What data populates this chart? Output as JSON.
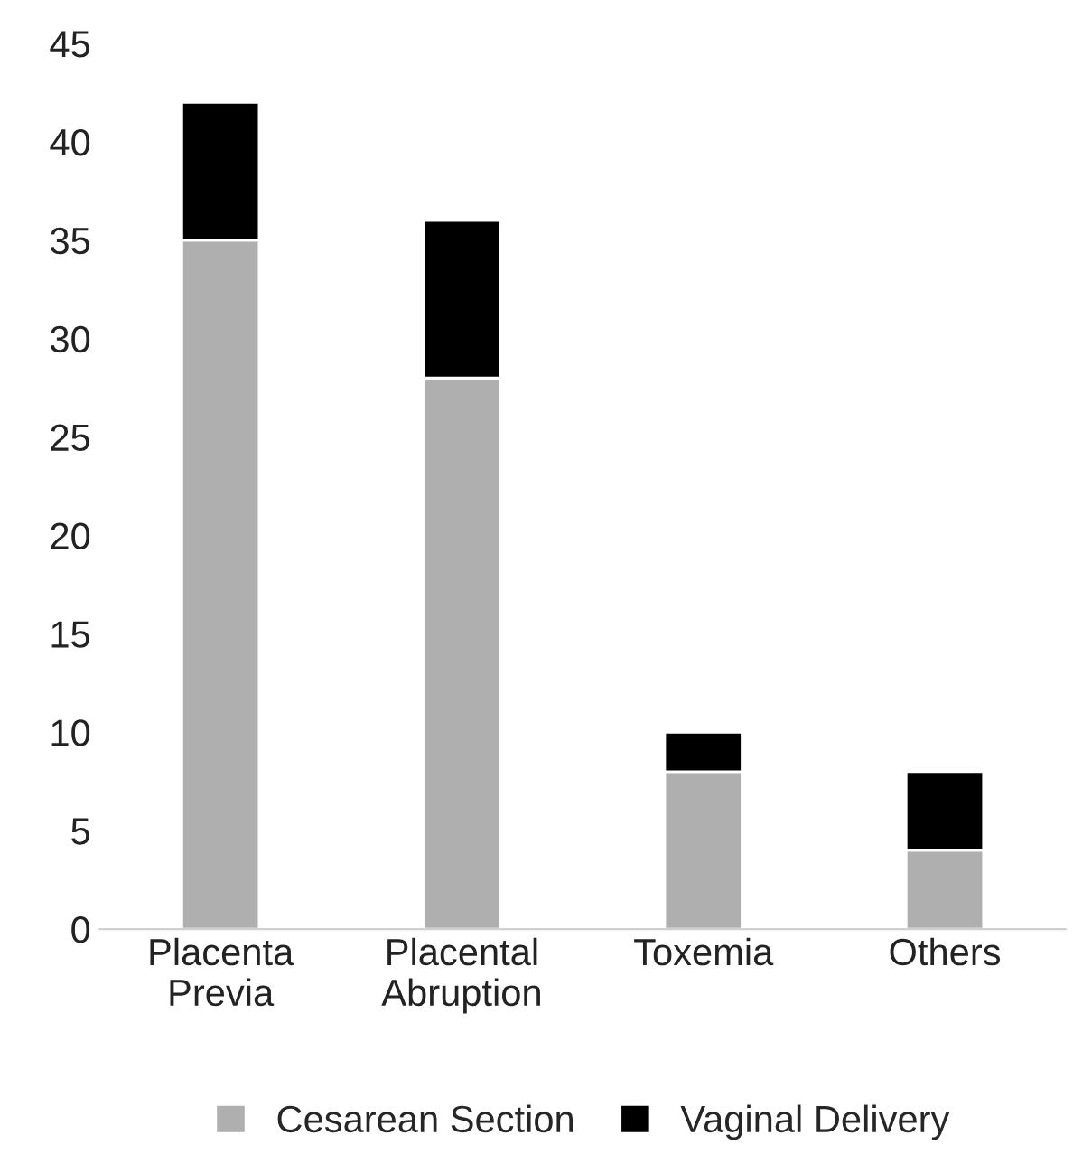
{
  "chart_data": {
    "type": "bar",
    "stacked": true,
    "categories": [
      "Placenta\nPrevia",
      "Placental\nAbruption",
      "Toxemia",
      "Others"
    ],
    "series": [
      {
        "name": "Cesarean Section",
        "color": "#afafaf",
        "values": [
          35,
          28,
          8,
          4
        ]
      },
      {
        "name": "Vaginal Delivery",
        "color": "#000000",
        "values": [
          7,
          8,
          2,
          4
        ]
      }
    ],
    "ylim": [
      0,
      45
    ],
    "yticks": [
      0,
      5,
      10,
      15,
      20,
      25,
      30,
      35,
      40,
      45
    ],
    "grid": false,
    "legend": "bottom"
  }
}
